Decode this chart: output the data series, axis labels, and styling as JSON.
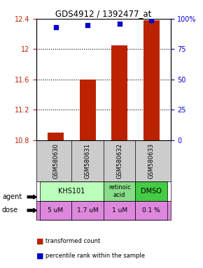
{
  "title": "GDS4912 / 1392477_at",
  "samples": [
    "GSM580630",
    "GSM580631",
    "GSM580632",
    "GSM580633"
  ],
  "bar_values": [
    10.9,
    11.6,
    12.05,
    12.38
  ],
  "bar_bottom": 10.8,
  "blue_values": [
    93,
    95,
    96,
    99
  ],
  "ylim_left": [
    10.8,
    12.4
  ],
  "ylim_right": [
    0,
    100
  ],
  "yticks_left": [
    10.8,
    11.2,
    11.6,
    12.0,
    12.4
  ],
  "ytick_labels_left": [
    "10.8",
    "11.2",
    "11.6",
    "12",
    "12.4"
  ],
  "yticks_right": [
    0,
    25,
    50,
    75,
    100
  ],
  "ytick_labels_right": [
    "0",
    "25",
    "50",
    "75",
    "100%"
  ],
  "hlines": [
    12.0,
    11.6,
    11.2
  ],
  "bar_color": "#bb2200",
  "blue_color": "#0000cc",
  "agent_labels": [
    "KHS101",
    "KHS101",
    "retinoic\nacid",
    "DMSO"
  ],
  "agent_spans": [
    [
      0,
      2,
      "#aaffaa"
    ],
    [
      2,
      3,
      "#88cc88"
    ],
    [
      3,
      4,
      "#44cc44"
    ]
  ],
  "dose_labels": [
    "5 uM",
    "1.7 uM",
    "1 uM",
    "0.1 %"
  ],
  "dose_color": "#dd88dd",
  "sample_bg": "#cccccc",
  "legend_bar_label": "transformed count",
  "legend_blue_label": "percentile rank within the sample",
  "arrow_label_agent": "agent",
  "arrow_label_dose": "dose"
}
